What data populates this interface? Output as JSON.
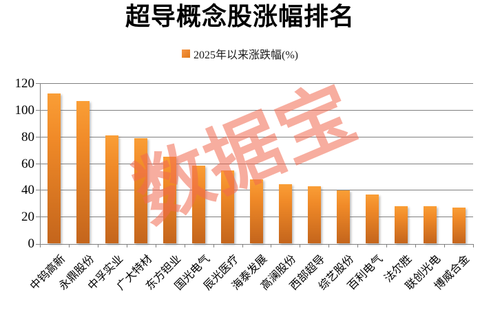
{
  "chart_data": {
    "type": "bar",
    "title": "超导概念股涨幅排名",
    "legend": {
      "label": "2025年以来涨跌幅(%)",
      "position": "top",
      "swatch_color": "#ED7D31"
    },
    "categories": [
      "中钨高新",
      "永鼎股份",
      "中孚实业",
      "广大特材",
      "东方钽业",
      "国光电气",
      "辰光医疗",
      "海泰发展",
      "高澜股份",
      "西部超导",
      "综艺股份",
      "百利电气",
      "法尔胜",
      "联创光电",
      "博威合金"
    ],
    "values": [
      113,
      107,
      81.5,
      79.5,
      65.5,
      58.5,
      55,
      48.5,
      45,
      43.5,
      40,
      37,
      28.5,
      28.5,
      27.5
    ],
    "xlabel": "",
    "ylabel": "",
    "ylim": [
      0,
      120
    ],
    "yticks": [
      0,
      20,
      40,
      60,
      80,
      100,
      120
    ],
    "grid": true,
    "gridline_color": "#7f7f7f",
    "bar_color_top": "#FA9E36",
    "bar_color_bottom": "#C4651C",
    "watermark": {
      "text": "数据宝",
      "color": "#F06A50"
    }
  }
}
